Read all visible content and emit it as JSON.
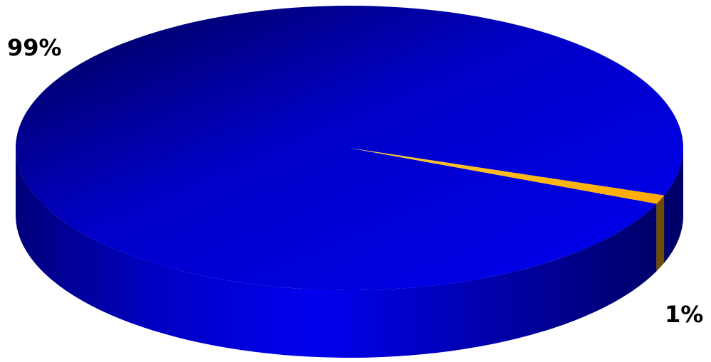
{
  "chart_data": {
    "type": "pie",
    "style": "3d",
    "slices": [
      {
        "value": 99,
        "label": "99%",
        "color": "#0000e6"
      },
      {
        "value": 1,
        "label": "1%",
        "color": "#ffb400"
      }
    ],
    "title": "",
    "legend": "none"
  }
}
